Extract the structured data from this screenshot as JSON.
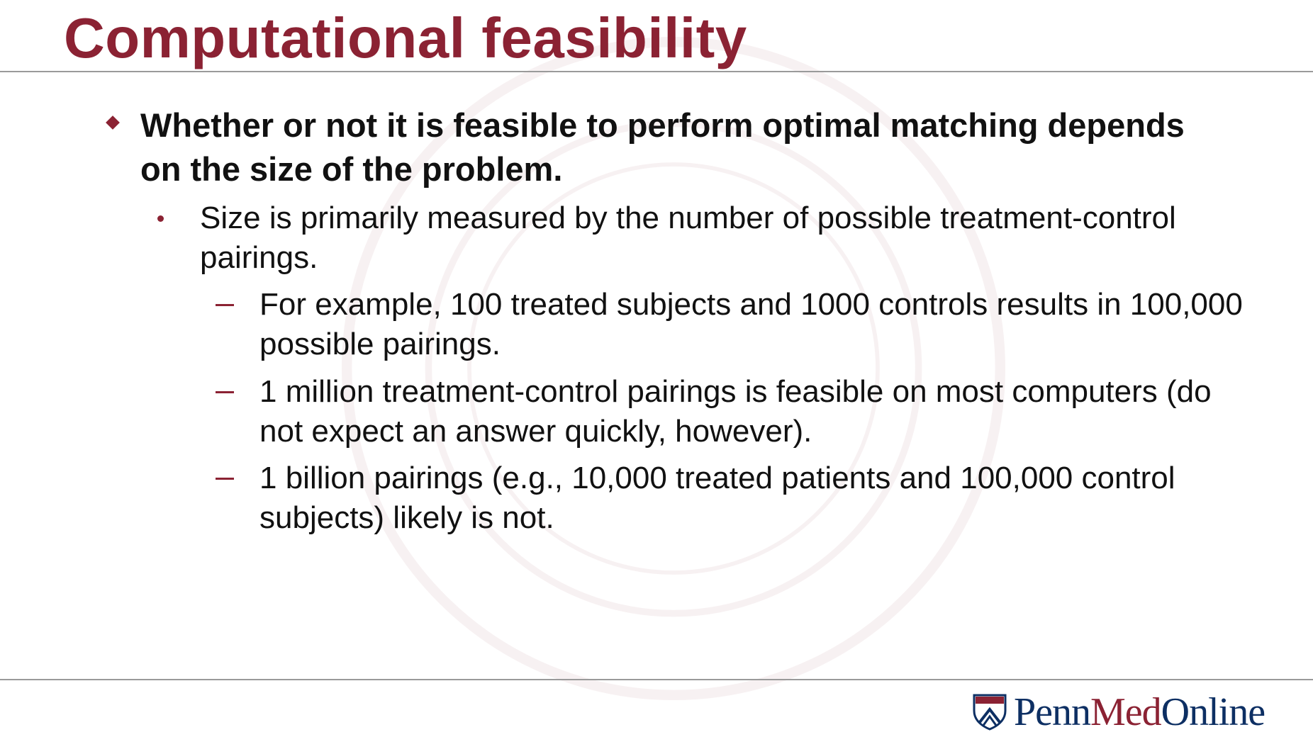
{
  "slide": {
    "title": "Computational feasibility",
    "bullets": {
      "level1": "Whether or not it is feasible to perform optimal matching depends on the size of the problem.",
      "level2": "Size is primarily measured by the number of possible treatment-control pairings.",
      "level3": [
        "For example, 100 treated subjects and 1000 controls results in 100,000 possible pairings.",
        "1 million treatment-control pairings is feasible on most computers (do not expect an answer quickly, however).",
        "1 billion pairings (e.g., 10,000 treated patients and 100,000 control subjects) likely is not."
      ]
    }
  },
  "logo": {
    "part1": "Penn",
    "part2": "Med",
    "part3": "Online",
    "icon": "penn-shield-icon"
  },
  "colors": {
    "accent": "#8b2233",
    "navy": "#0d2f63",
    "text": "#111111",
    "rule": "#9a9a9a"
  }
}
